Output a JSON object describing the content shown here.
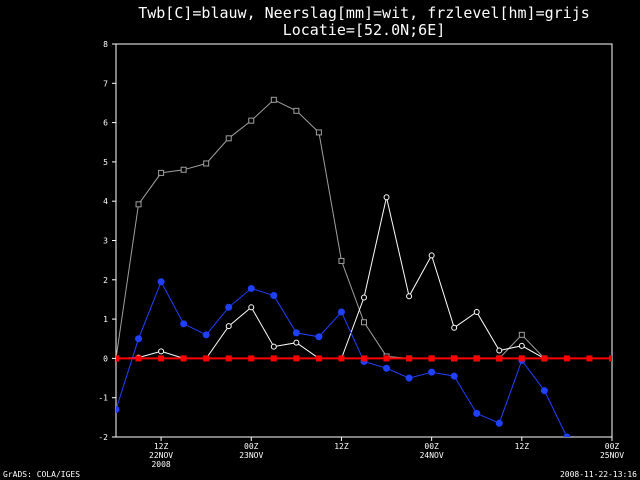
{
  "chart_data": {
    "type": "line",
    "title": "Twb[C]=blauw, Neerslag[mm]=wit, frzlevel[hm]=grijs",
    "subtitle": "Locatie=[52.0N;6E]",
    "ylim": [
      -2,
      8
    ],
    "yticks": [
      -2,
      -1,
      0,
      1,
      2,
      3,
      4,
      5,
      6,
      7,
      8
    ],
    "xlim": [
      0,
      22
    ],
    "xticks": [
      {
        "x": 2,
        "lines": [
          "12Z",
          "22NOV",
          "2008"
        ]
      },
      {
        "x": 6,
        "lines": [
          "00Z",
          "23NOV"
        ]
      },
      {
        "x": 10,
        "lines": [
          "12Z"
        ]
      },
      {
        "x": 14,
        "lines": [
          "00Z",
          "24NOV"
        ]
      },
      {
        "x": 18,
        "lines": [
          "12Z"
        ]
      },
      {
        "x": 22,
        "lines": [
          "00Z",
          "25NOV"
        ]
      }
    ],
    "footer_left": "GrADS: COLA/IGES",
    "footer_right": "2008-11-22-13:16",
    "zero_line_color": "#ff0000",
    "series": [
      {
        "key": "freezing_level",
        "color": "#a0a0a0",
        "marker": "square-open",
        "x": [
          0,
          1,
          2,
          3,
          4,
          5,
          6,
          7,
          8,
          9,
          10,
          11,
          12,
          13,
          14,
          15,
          16,
          17,
          18,
          19
        ],
        "values": [
          0.0,
          3.92,
          4.72,
          4.8,
          4.96,
          5.6,
          6.05,
          6.58,
          6.3,
          5.75,
          2.48,
          0.92,
          0.05,
          0.0,
          0.0,
          0.0,
          0.0,
          0.0,
          0.6,
          0.0
        ]
      },
      {
        "key": "precipitation",
        "color": "#ffffff",
        "marker": "circle-open",
        "x": [
          0,
          1,
          2,
          3,
          4,
          5,
          6,
          7,
          8,
          9,
          10,
          11,
          12,
          13,
          14,
          15,
          16,
          17,
          18,
          19
        ],
        "values": [
          0.0,
          0.02,
          0.18,
          0.0,
          0.0,
          0.82,
          1.3,
          0.3,
          0.4,
          0.0,
          0.0,
          1.55,
          4.1,
          1.58,
          2.62,
          0.78,
          1.18,
          0.2,
          0.32,
          0.0
        ]
      },
      {
        "key": "wet_bulb_temperature",
        "color": "#2040ff",
        "marker": "circle-filled",
        "x": [
          0,
          1,
          2,
          3,
          4,
          5,
          6,
          7,
          8,
          9,
          10,
          11,
          12,
          13,
          14,
          15,
          16,
          17,
          18,
          19,
          20
        ],
        "values": [
          -1.3,
          0.5,
          1.95,
          0.88,
          0.6,
          1.3,
          1.78,
          1.6,
          0.65,
          0.55,
          1.18,
          -0.08,
          -0.25,
          -0.5,
          -0.35,
          -0.45,
          -1.4,
          -1.65,
          -0.05,
          -0.82,
          -2.0
        ]
      },
      {
        "key": "zero_reference",
        "color": "#ff0000",
        "marker": "square-filled",
        "x": [
          0,
          1,
          2,
          3,
          4,
          5,
          6,
          7,
          8,
          9,
          10,
          11,
          12,
          13,
          14,
          15,
          16,
          17,
          18,
          19,
          20,
          21,
          22
        ],
        "values": [
          0,
          0,
          0,
          0,
          0,
          0,
          0,
          0,
          0,
          0,
          0,
          0,
          0,
          0,
          0,
          0,
          0,
          0,
          0,
          0,
          0,
          0,
          0
        ]
      }
    ]
  }
}
